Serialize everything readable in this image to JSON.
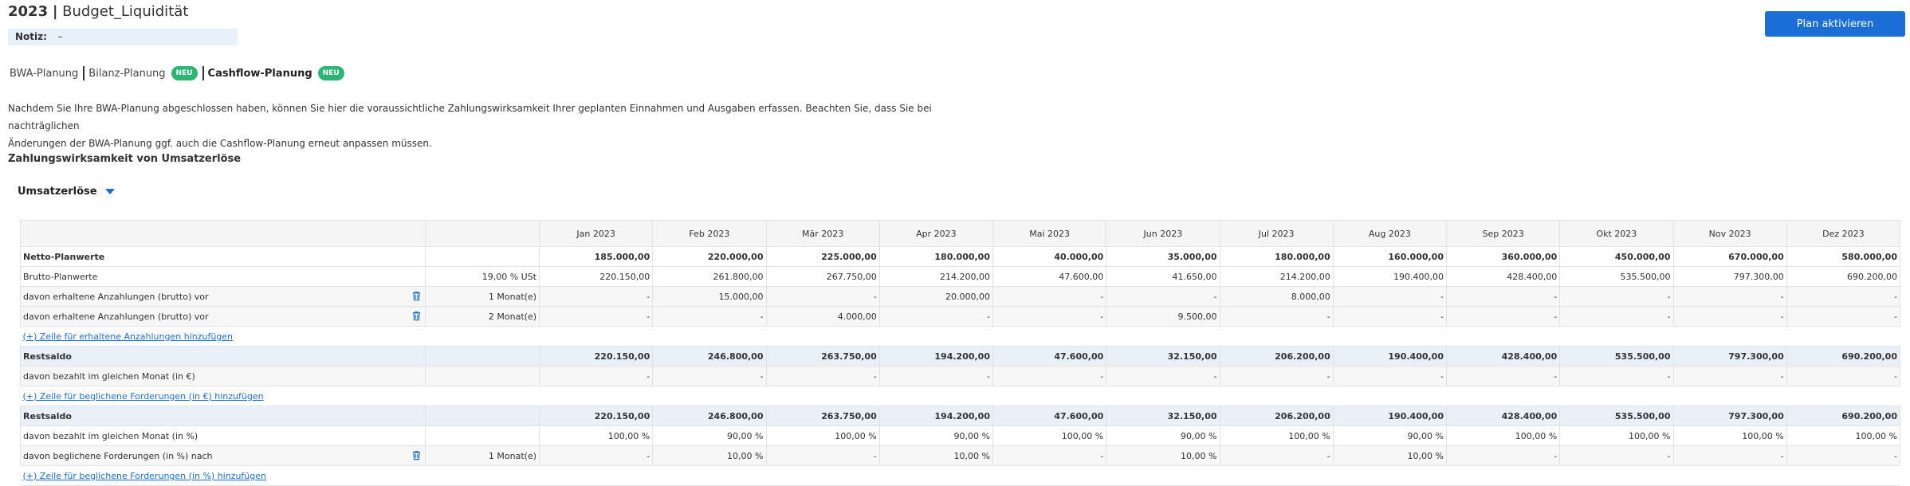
{
  "header": {
    "year": "2023",
    "separator": "|",
    "plan_name": "Budget_Liquidität",
    "note_label": "Notiz:",
    "note_value": "–",
    "activate_button": "Plan aktivieren"
  },
  "tabs": [
    {
      "label": "BWA-Planung",
      "badge": ""
    },
    {
      "label": "Bilanz-Planung",
      "badge": "NEU"
    },
    {
      "label": "Cashflow-Planung",
      "badge": "NEU"
    }
  ],
  "intro_line1": "Nachdem Sie Ihre BWA-Planung abgeschlossen haben, können Sie hier die voraussichtliche Zahlungswirksamkeit Ihrer geplanten Einnahmen und Ausgaben erfassen. Beachten Sie, dass Sie bei nachträglichen",
  "intro_line2": "Änderungen der BWA-Planung ggf. auch die Cashflow-Planung erneut anpassen müssen.",
  "section_title": "Zahlungswirksamkeit von Umsatzerlöse",
  "dropdown_label": "Umsatzerlöse",
  "colors": {
    "accent": "#1a6ed6",
    "badge": "#2bb673",
    "rest_bg": "#e9f0f7"
  },
  "table": {
    "months": [
      "Jan 2023",
      "Feb 2023",
      "Mär 2023",
      "Apr 2023",
      "Mai 2023",
      "Jun 2023",
      "Jul 2023",
      "Aug 2023",
      "Sep 2023",
      "Okt 2023",
      "Nov 2023",
      "Dez 2023"
    ],
    "rows": [
      {
        "label": "Netto-Planwerte",
        "meta": "",
        "style": "bold",
        "values": [
          "185.000,00",
          "220.000,00",
          "225.000,00",
          "180.000,00",
          "40.000,00",
          "35.000,00",
          "180.000,00",
          "160.000,00",
          "360.000,00",
          "450.000,00",
          "670.000,00",
          "580.000,00"
        ]
      },
      {
        "label": "Brutto-Planwerte",
        "meta": "19,00 % USt",
        "style": "",
        "values": [
          "220.150,00",
          "261.800,00",
          "267.750,00",
          "214.200,00",
          "47.600,00",
          "41.650,00",
          "214.200,00",
          "190.400,00",
          "428.400,00",
          "535.500,00",
          "797.300,00",
          "690.200,00"
        ]
      },
      {
        "label": "davon erhaltene Anzahlungen (brutto) vor",
        "meta": "1 Monat(e)",
        "style": "alt",
        "trash": true,
        "values": [
          "-",
          "15.000,00",
          "-",
          "20.000,00",
          "-",
          "-",
          "8.000,00",
          "-",
          "-",
          "-",
          "-",
          "-"
        ]
      },
      {
        "label": "davon erhaltene Anzahlungen (brutto) vor",
        "meta": "2 Monat(e)",
        "style": "alt",
        "trash": true,
        "values": [
          "-",
          "-",
          "4.000,00",
          "-",
          "-",
          "9.500,00",
          "-",
          "-",
          "-",
          "-",
          "-",
          "-"
        ]
      },
      {
        "link": "(+) Zeile für erhaltene Anzahlungen hinzufügen"
      },
      {
        "label": "Restsaldo",
        "meta": "",
        "style": "rest",
        "values": [
          "220.150,00",
          "246.800,00",
          "263.750,00",
          "194.200,00",
          "47.600,00",
          "32.150,00",
          "206.200,00",
          "190.400,00",
          "428.400,00",
          "535.500,00",
          "797.300,00",
          "690.200,00"
        ]
      },
      {
        "label": "davon bezahlt im gleichen Monat (in €)",
        "meta": "",
        "style": "alt",
        "values": [
          "-",
          "-",
          "-",
          "-",
          "-",
          "-",
          "-",
          "-",
          "-",
          "-",
          "-",
          "-"
        ]
      },
      {
        "link": "(+) Zeile für beglichene Forderungen (in €) hinzufügen"
      },
      {
        "label": "Restsaldo",
        "meta": "",
        "style": "rest",
        "values": [
          "220.150,00",
          "246.800,00",
          "263.750,00",
          "194.200,00",
          "47.600,00",
          "32.150,00",
          "206.200,00",
          "190.400,00",
          "428.400,00",
          "535.500,00",
          "797.300,00",
          "690.200,00"
        ]
      },
      {
        "label": "davon bezahlt im gleichen Monat (in %)",
        "meta": "",
        "style": "",
        "values": [
          "100,00 %",
          "90,00 %",
          "100,00 %",
          "90,00 %",
          "100,00 %",
          "90,00 %",
          "100,00 %",
          "90,00 %",
          "100,00 %",
          "100,00 %",
          "100,00 %",
          "100,00 %"
        ]
      },
      {
        "label": "davon beglichene Forderungen (in %) nach",
        "meta": "1 Monat(e)",
        "style": "alt",
        "trash": true,
        "values": [
          "-",
          "10,00 %",
          "-",
          "10,00 %",
          "-",
          "10,00 %",
          "-",
          "10,00 %",
          "-",
          "-",
          "-",
          "-"
        ]
      },
      {
        "link": "(+) Zeile für beglichene Forderungen (in %) hinzufügen"
      }
    ]
  }
}
